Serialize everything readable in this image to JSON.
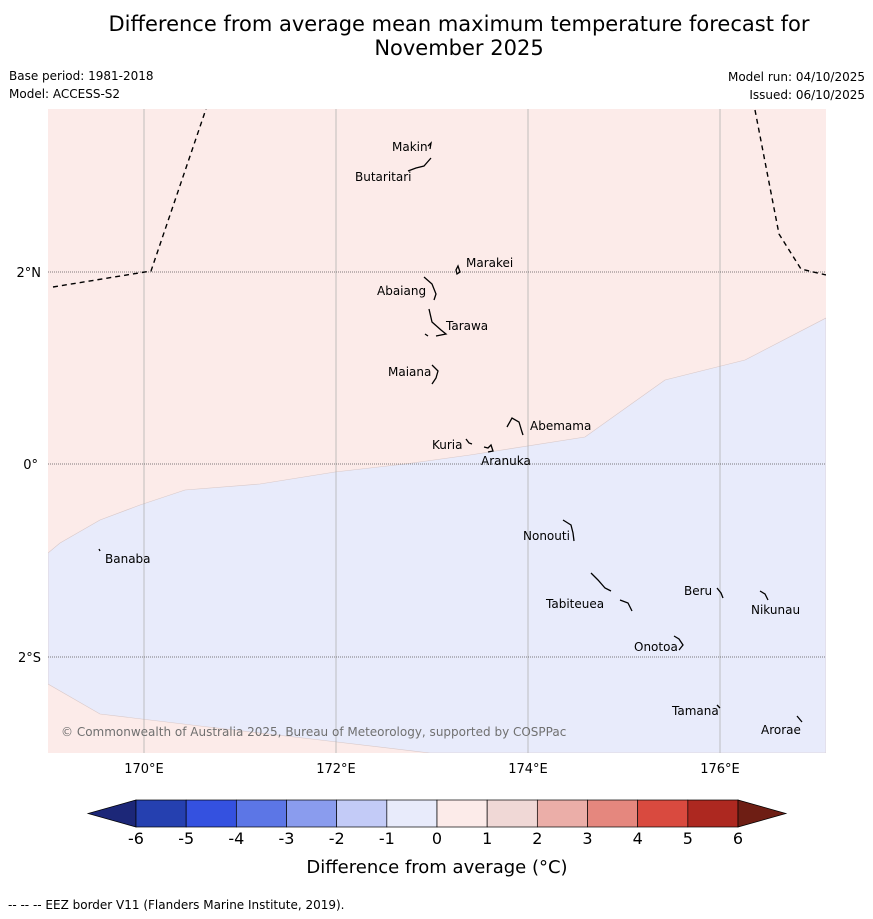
{
  "title_line1": "Difference from average mean maximum temperature forecast for",
  "title_line2": "November 2025",
  "meta": {
    "base_period": "Base period: 1981-2018",
    "model": "Model: ACCESS-S2",
    "model_run": "Model run: 04/10/2025",
    "issued": "Issued: 06/10/2025"
  },
  "map": {
    "lat_labels": [
      "2°N",
      "0°",
      "2°S"
    ],
    "lon_labels": [
      "170°E",
      "172°E",
      "174°E",
      "176°E"
    ],
    "place_labels": [
      "Makin",
      "Butaritari",
      "Marakei",
      "Abaiang",
      "Tarawa",
      "Maiana",
      "Abemama",
      "Kuria",
      "Aranuka",
      "Nonouti",
      "Banaba",
      "Beru",
      "Nikunau",
      "Tabiteuea",
      "Onotoa",
      "Tamana",
      "Arorae"
    ],
    "copyright": "© Commonwealth of Australia 2025, Bureau of Meteorology, supported by COSPPac",
    "region_colors": {
      "warm": "#fcebe9",
      "cool": "#e8ebfb"
    }
  },
  "colorbar": {
    "ticks": [
      "-6",
      "-5",
      "-4",
      "-3",
      "-2",
      "-1",
      "0",
      "1",
      "2",
      "3",
      "4",
      "5",
      "6"
    ],
    "colors": [
      "#1c2778",
      "#2540b0",
      "#3451e0",
      "#5c76e6",
      "#8a9cee",
      "#c3cbf7",
      "#e8ebfb",
      "#fcebe9",
      "#f0d8d6",
      "#ebaea8",
      "#e5877e",
      "#d94a3f",
      "#ad2820",
      "#6e1e14"
    ],
    "label": "Difference from average (°C)"
  },
  "footer": "--  --  -- EEZ border V11 (Flanders Marine Institute, 2019)."
}
